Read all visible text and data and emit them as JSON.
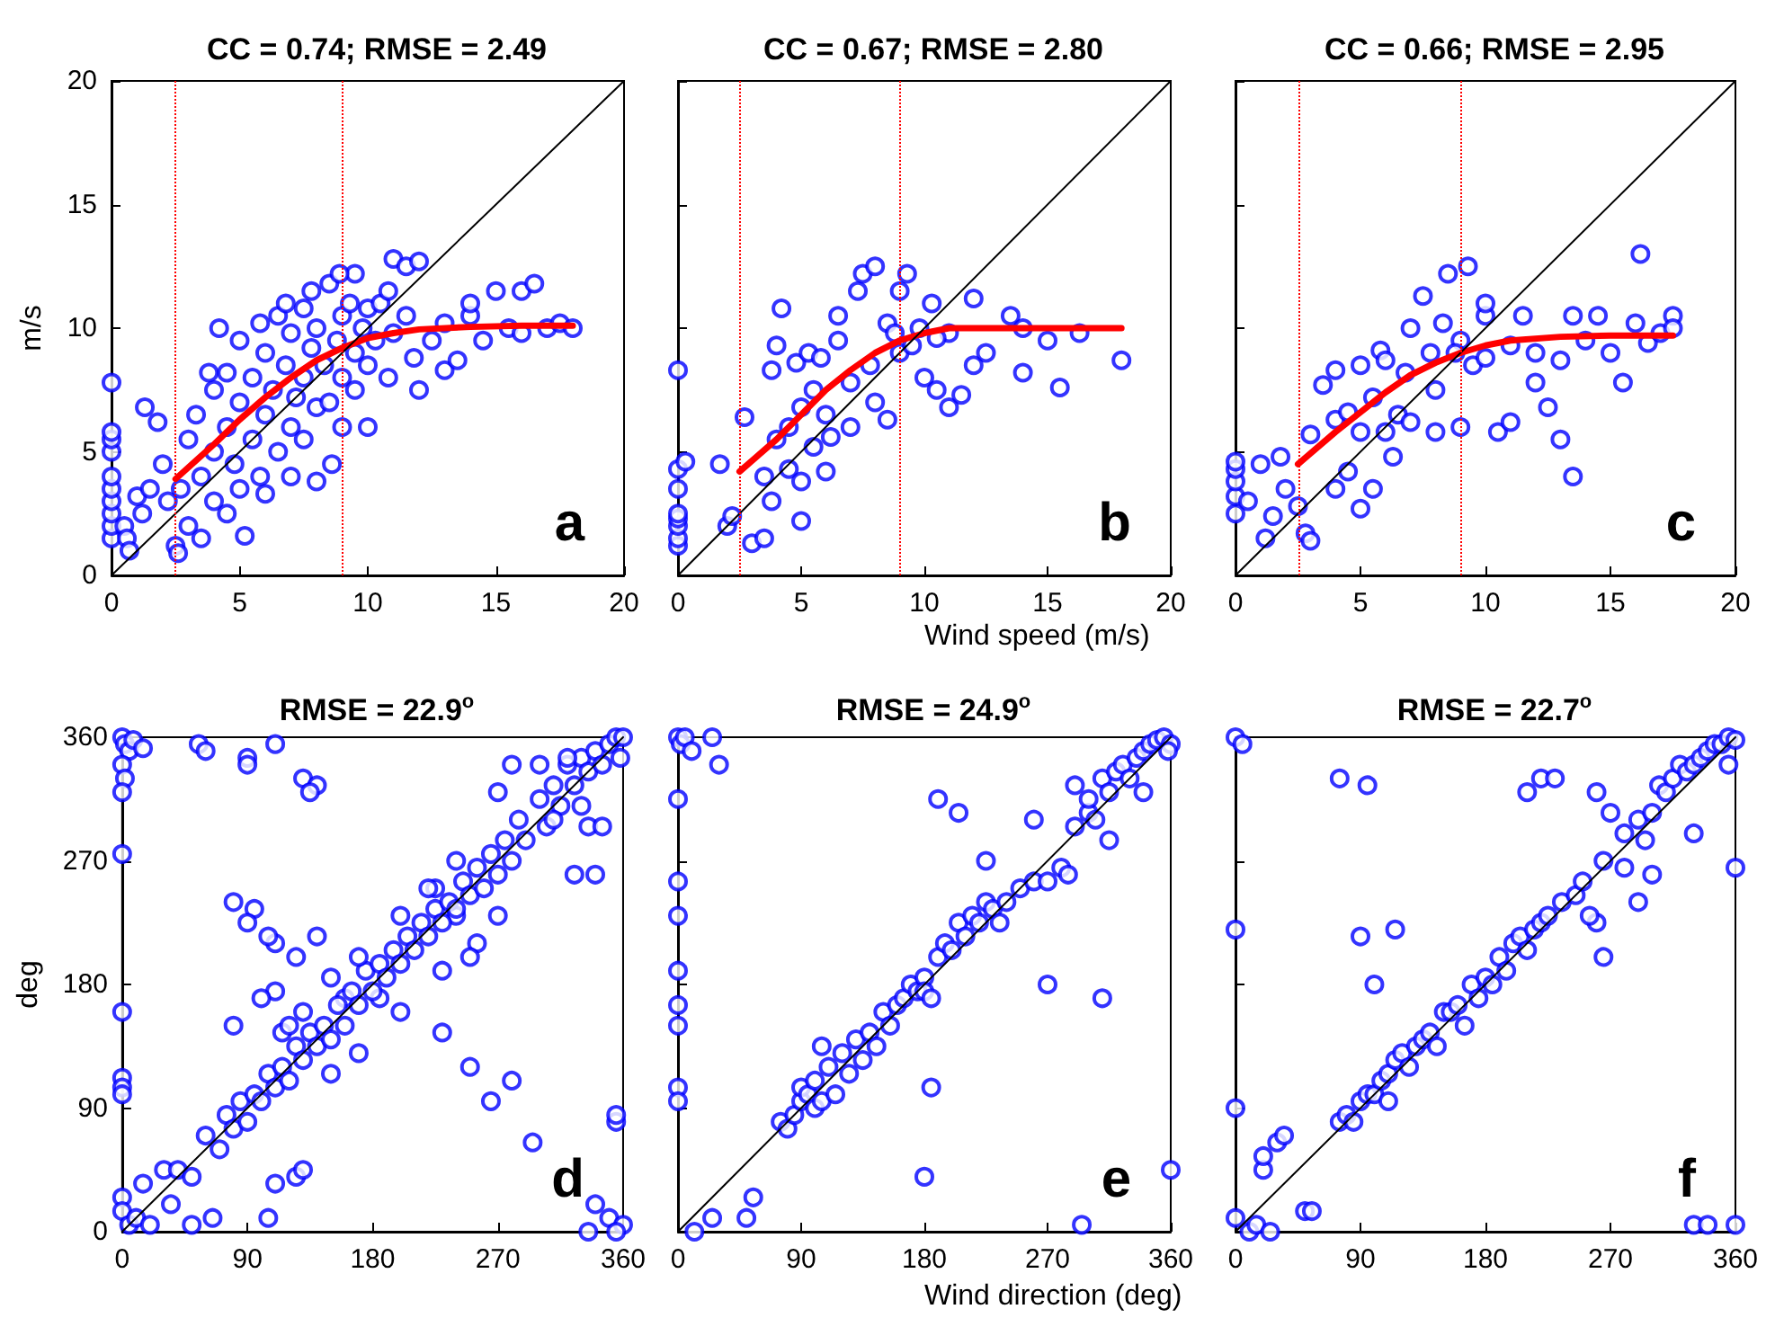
{
  "chart_data": [
    {
      "type": "scatter",
      "title": "CC = 0.74; RMSE = 2.49",
      "ylabel": "m/s",
      "xlim": [
        0,
        20
      ],
      "ylim": [
        0,
        20
      ],
      "xticks": [
        0,
        5,
        10,
        15,
        20
      ],
      "yticks": [
        0,
        5,
        10,
        15,
        20
      ],
      "marker": "circle",
      "annotations": [
        "a"
      ],
      "ref_lines": [
        {
          "axis": "x",
          "value": 2.5,
          "color": "#ff0000",
          "line_style": "dotted"
        },
        {
          "axis": "x",
          "value": 9,
          "color": "#ff0000",
          "line_style": "dotted"
        }
      ],
      "series": [
        {
          "color": "#0000ff",
          "x": [
            0,
            0,
            0,
            0,
            0,
            0,
            0,
            0,
            0,
            0,
            0.5,
            0.6,
            0.7,
            1,
            1.2,
            1.5,
            1.3,
            1.8,
            2,
            2.2,
            2.5,
            2.6,
            2.7,
            3,
            3,
            3.3,
            3.5,
            3.5,
            3.8,
            4,
            4,
            4,
            4.2,
            4.5,
            4.5,
            4.5,
            4.8,
            5,
            5,
            5,
            5.2,
            5.5,
            5.5,
            5.8,
            5.8,
            6,
            6,
            6,
            6.3,
            6.5,
            6.5,
            6.8,
            6.8,
            7,
            7,
            7,
            7.2,
            7.5,
            7.5,
            7.5,
            7.8,
            7.8,
            8,
            8,
            8,
            8.3,
            8.5,
            8.5,
            8.6,
            8.8,
            9,
            9,
            9,
            9.3,
            9.5,
            9.5,
            9.8,
            10,
            10,
            10,
            10.3,
            10.5,
            10.8,
            11,
            11,
            11.5,
            11.5,
            11.8,
            12,
            12,
            12.5,
            13,
            13,
            14,
            14.5,
            15,
            15.5,
            16,
            16.5,
            16,
            17,
            17.5,
            18,
            13.5,
            14,
            10.8,
            9.5,
            8.9
          ],
          "values": [
            1.5,
            2,
            2.5,
            3,
            3.5,
            4,
            5,
            5.5,
            5.8,
            7.8,
            2,
            1.5,
            1,
            3.2,
            2.5,
            3.5,
            6.8,
            6.2,
            4.5,
            3,
            1.2,
            0.9,
            3.5,
            5.5,
            2,
            6.5,
            1.5,
            4,
            8.2,
            3,
            5,
            7.5,
            10,
            2.5,
            6,
            8.2,
            4.5,
            9.5,
            3.5,
            7,
            1.6,
            5.5,
            8,
            10.2,
            4,
            6.5,
            9,
            3.3,
            7.5,
            10.5,
            5,
            8.5,
            11,
            6,
            9.8,
            4,
            7.2,
            10.8,
            8,
            5.5,
            9.2,
            11.5,
            6.8,
            3.8,
            10,
            8.5,
            11.8,
            7,
            4.5,
            9.5,
            10.5,
            8,
            6,
            11,
            9,
            7.5,
            10,
            8.5,
            10.8,
            6,
            9.5,
            11,
            8,
            9.8,
            12.8,
            10.5,
            12.5,
            8.8,
            12.7,
            7.5,
            9.5,
            10.2,
            8.3,
            10.5,
            9.5,
            11.5,
            10,
            11.5,
            11.8,
            9.8,
            10,
            10.2,
            10,
            8.7,
            11,
            11.5,
            12.2,
            12.2
          ]
        },
        {
          "type": "line",
          "marker": "none",
          "color": "#ff0000",
          "x": [
            2.5,
            4,
            5,
            6,
            7,
            8,
            9,
            10,
            11,
            12,
            14,
            16,
            18
          ],
          "values": [
            3.9,
            5.3,
            6.3,
            7.2,
            8,
            8.7,
            9.2,
            9.6,
            9.8,
            9.95,
            10.05,
            10.1,
            10.1
          ]
        },
        {
          "type": "line",
          "marker": "none",
          "color": "#000000",
          "x": [
            0,
            20
          ],
          "values": [
            0,
            20
          ]
        }
      ]
    },
    {
      "type": "scatter",
      "title": "CC = 0.67; RMSE = 2.80",
      "xlabel": "Wind speed (m/s)",
      "xlim": [
        0,
        20
      ],
      "ylim": [
        0,
        20
      ],
      "xticks": [
        0,
        5,
        10,
        15,
        20
      ],
      "yticks": [
        0,
        5,
        10,
        15,
        20
      ],
      "tick_labels": "x",
      "marker": "circle",
      "annotations": [
        "b"
      ],
      "ref_lines": [
        {
          "axis": "x",
          "value": 2.5,
          "color": "#ff0000",
          "line_style": "dotted"
        },
        {
          "axis": "x",
          "value": 9,
          "color": "#ff0000",
          "line_style": "dotted"
        }
      ],
      "series": [
        {
          "color": "#0000ff",
          "x": [
            0,
            0,
            0,
            0,
            0,
            0,
            0,
            0,
            0.3,
            1.7,
            2,
            2.2,
            2.7,
            3,
            3.5,
            3.5,
            3.8,
            3.8,
            4,
            4,
            4.2,
            4.5,
            4.5,
            4.8,
            5,
            5,
            5,
            5.3,
            5.5,
            5.5,
            5.8,
            6,
            6,
            6.5,
            6.5,
            7,
            7,
            7.3,
            7.5,
            7.8,
            8,
            8,
            8.5,
            8.5,
            9,
            9,
            9.3,
            9.5,
            9.8,
            10,
            10.3,
            10.5,
            11,
            11,
            11.5,
            12,
            12,
            12.5,
            13.5,
            14,
            14,
            15,
            15.5,
            16.3,
            18,
            10.5,
            8.8,
            6.2
          ],
          "values": [
            1.2,
            1.5,
            2,
            2.3,
            2.5,
            3.5,
            4.3,
            8.3,
            4.6,
            4.5,
            2,
            2.4,
            6.4,
            1.3,
            4,
            1.5,
            3,
            8.3,
            5.5,
            9.3,
            10.8,
            6,
            4.3,
            8.6,
            3.8,
            6.8,
            2.2,
            9,
            5.2,
            7.5,
            8.8,
            4.2,
            6.5,
            10.5,
            9.5,
            7.8,
            6,
            11.5,
            12.2,
            8.5,
            7,
            12.5,
            10.2,
            6.3,
            11.5,
            9,
            12.2,
            9.3,
            10,
            8,
            11,
            7.5,
            9.8,
            6.8,
            7.3,
            8.5,
            11.2,
            9,
            10.5,
            8.2,
            10,
            9.5,
            7.6,
            9.8,
            8.7,
            9.6,
            9.8,
            5.6
          ]
        },
        {
          "type": "line",
          "marker": "none",
          "color": "#ff0000",
          "x": [
            2.5,
            4,
            5,
            6,
            7,
            8,
            9,
            10,
            11,
            13,
            15,
            18
          ],
          "values": [
            4.2,
            5.5,
            6.5,
            7.5,
            8.3,
            9,
            9.5,
            9.8,
            10,
            10,
            10,
            10
          ]
        },
        {
          "type": "line",
          "marker": "none",
          "color": "#000000",
          "x": [
            0,
            20
          ],
          "values": [
            0,
            20
          ]
        }
      ]
    },
    {
      "type": "scatter",
      "title": "CC = 0.66; RMSE = 2.95",
      "xlim": [
        0,
        20
      ],
      "ylim": [
        0,
        20
      ],
      "xticks": [
        0,
        5,
        10,
        15,
        20
      ],
      "yticks": [
        0,
        5,
        10,
        15,
        20
      ],
      "tick_labels": "x",
      "marker": "circle",
      "annotations": [
        "c"
      ],
      "ref_lines": [
        {
          "axis": "x",
          "value": 2.5,
          "color": "#ff0000",
          "line_style": "dotted"
        },
        {
          "axis": "x",
          "value": 9,
          "color": "#ff0000",
          "line_style": "dotted"
        }
      ],
      "series": [
        {
          "color": "#0000ff",
          "x": [
            0,
            0,
            0,
            0,
            0,
            0.5,
            1,
            1.2,
            1.5,
            1.8,
            2,
            2.5,
            2.8,
            3,
            3,
            3.5,
            4,
            4,
            4,
            4.5,
            4.5,
            5,
            5,
            5,
            5.5,
            5.5,
            5.8,
            6,
            6,
            6.3,
            6.5,
            6.8,
            7,
            7,
            7.5,
            7.8,
            8,
            8,
            8.3,
            8.5,
            9,
            9,
            9.3,
            9.5,
            10,
            10,
            10.5,
            11,
            11,
            11.5,
            12,
            12,
            12.5,
            13,
            13,
            13.5,
            13.5,
            14,
            14.5,
            15,
            15.5,
            16,
            16.2,
            16.5,
            17,
            17.5,
            17.5,
            10,
            8.8
          ],
          "values": [
            2.5,
            3.2,
            3.8,
            4.3,
            4.6,
            3,
            4.5,
            1.5,
            2.4,
            4.8,
            3.5,
            2.8,
            1.7,
            1.4,
            5.7,
            7.7,
            6.3,
            3.5,
            8.3,
            6.6,
            4.2,
            5.8,
            8.5,
            2.7,
            3.5,
            7.2,
            9.1,
            5.8,
            8.7,
            4.8,
            6.5,
            8.2,
            6.2,
            10,
            11.3,
            9,
            5.8,
            7.5,
            10.2,
            12.2,
            6,
            9.5,
            12.5,
            8.5,
            10.5,
            8.8,
            5.8,
            6.2,
            9.3,
            10.5,
            7.8,
            9,
            6.8,
            8.7,
            5.5,
            10.5,
            4,
            9.5,
            10.5,
            9,
            7.8,
            10.2,
            13,
            9.4,
            9.8,
            10.5,
            10,
            11,
            9
          ]
        },
        {
          "type": "line",
          "marker": "none",
          "color": "#ff0000",
          "x": [
            2.5,
            4,
            5,
            6,
            7,
            8,
            9,
            10,
            11,
            13,
            15,
            17.5
          ],
          "values": [
            4.5,
            5.8,
            6.6,
            7.4,
            8.1,
            8.6,
            9,
            9.3,
            9.5,
            9.65,
            9.7,
            9.7
          ]
        },
        {
          "type": "line",
          "marker": "none",
          "color": "#000000",
          "x": [
            0,
            20
          ],
          "values": [
            0,
            20
          ]
        }
      ]
    },
    {
      "type": "scatter",
      "title": "RMSE = 22.9$^{o}$",
      "ylabel": "deg",
      "xlim": [
        0,
        360
      ],
      "ylim": [
        0,
        360
      ],
      "xticks": [
        0,
        90,
        180,
        270,
        360
      ],
      "yticks": [
        0,
        90,
        180,
        270,
        360
      ],
      "marker": "circle",
      "annotations": [
        "d"
      ],
      "series": [
        {
          "color": "#0000ff",
          "x": [
            0,
            2,
            5,
            8,
            15,
            0,
            2,
            0,
            0,
            0,
            0,
            0,
            0,
            0,
            0,
            5,
            10,
            20,
            15,
            35,
            30,
            50,
            55,
            60,
            90,
            90,
            110,
            130,
            140,
            135,
            80,
            95,
            90,
            110,
            105,
            125,
            140,
            110,
            80,
            160,
            185,
            225,
            240,
            230,
            250,
            280,
            265,
            295,
            335,
            325,
            345,
            340,
            255,
            355,
            355,
            340,
            350,
            335,
            360,
            355,
            100,
            115,
            105,
            110,
            65,
            125,
            130,
            40,
            50,
            60,
            70,
            75,
            80,
            85,
            90,
            95,
            100,
            105,
            110,
            115,
            120,
            125,
            130,
            135,
            140,
            145,
            150,
            155,
            160,
            165,
            170,
            175,
            180,
            185,
            190,
            195,
            200,
            205,
            210,
            215,
            220,
            225,
            230,
            235,
            240,
            245,
            250,
            255,
            260,
            265,
            270,
            275,
            280,
            285,
            290,
            300,
            305,
            310,
            315,
            320,
            325,
            330,
            335,
            340,
            345,
            350,
            355,
            360,
            358,
            300,
            320,
            280,
            270,
            310,
            330,
            120,
            130,
            150,
            170,
            200,
            220,
            240,
            150,
            170,
            200,
            230,
            250,
            270
          ],
          "values": [
            360,
            355,
            350,
            358,
            352,
            340,
            330,
            320,
            275,
            160,
            112,
            105,
            100,
            25,
            15,
            5,
            10,
            5,
            35,
            20,
            45,
            5,
            355,
            350,
            345,
            340,
            355,
            330,
            325,
            320,
            240,
            235,
            225,
            210,
            215,
            200,
            215,
            175,
            150,
            170,
            170,
            250,
            230,
            145,
            120,
            110,
            95,
            65,
            295,
            260,
            295,
            260,
            210,
            80,
            85,
            20,
            10,
            0,
            5,
            0,
            170,
            145,
            10,
            35,
            10,
            40,
            45,
            45,
            40,
            70,
            60,
            85,
            75,
            95,
            80,
            100,
            95,
            115,
            105,
            120,
            110,
            135,
            125,
            145,
            135,
            150,
            140,
            165,
            150,
            175,
            165,
            190,
            175,
            195,
            185,
            205,
            195,
            215,
            205,
            225,
            215,
            235,
            225,
            240,
            235,
            255,
            245,
            265,
            250,
            275,
            260,
            285,
            270,
            300,
            285,
            315,
            295,
            325,
            310,
            340,
            325,
            345,
            335,
            350,
            340,
            355,
            360,
            360,
            345,
            340,
            345,
            340,
            320,
            300,
            310,
            150,
            160,
            185,
            200,
            230,
            250,
            270,
            115,
            130,
            160,
            190,
            200,
            230
          ]
        },
        {
          "type": "line",
          "marker": "none",
          "color": "#000000",
          "x": [
            0,
            360
          ],
          "values": [
            0,
            360
          ]
        }
      ]
    },
    {
      "type": "scatter",
      "title": "RMSE = 24.9$^{o}$",
      "xlabel": "Wind direction (deg)",
      "xlim": [
        0,
        360
      ],
      "ylim": [
        0,
        360
      ],
      "xticks": [
        0,
        90,
        180,
        270,
        360
      ],
      "yticks": [
        0,
        90,
        180,
        270,
        360
      ],
      "tick_labels": "x",
      "marker": "circle",
      "annotations": [
        "e"
      ],
      "series": [
        {
          "color": "#0000ff",
          "x": [
            0,
            2,
            5,
            10,
            25,
            30,
            0,
            0,
            0,
            0,
            0,
            0,
            0,
            0,
            12,
            25,
            50,
            55,
            105,
            190,
            205,
            225,
            260,
            180,
            270,
            310,
            360,
            295,
            185,
            75,
            80,
            85,
            90,
            90,
            95,
            100,
            100,
            105,
            110,
            115,
            120,
            125,
            130,
            135,
            140,
            145,
            150,
            155,
            160,
            165,
            170,
            175,
            180,
            180,
            185,
            190,
            195,
            200,
            205,
            210,
            215,
            220,
            225,
            230,
            235,
            240,
            250,
            260,
            270,
            280,
            285,
            290,
            300,
            305,
            310,
            315,
            320,
            325,
            330,
            335,
            340,
            345,
            350,
            355,
            360,
            358,
            315,
            290,
            300,
            340
          ],
          "values": [
            360,
            355,
            360,
            350,
            360,
            340,
            315,
            255,
            230,
            190,
            165,
            150,
            105,
            95,
            0,
            10,
            10,
            25,
            135,
            315,
            305,
            270,
            300,
            40,
            180,
            170,
            45,
            5,
            105,
            80,
            75,
            85,
            95,
            105,
            100,
            90,
            110,
            95,
            120,
            100,
            130,
            115,
            140,
            125,
            145,
            135,
            160,
            150,
            165,
            170,
            180,
            175,
            185,
            175,
            170,
            200,
            210,
            205,
            225,
            215,
            230,
            225,
            240,
            235,
            225,
            240,
            250,
            255,
            255,
            265,
            260,
            295,
            305,
            300,
            330,
            320,
            335,
            340,
            330,
            345,
            350,
            355,
            358,
            360,
            355,
            350,
            285,
            325,
            315,
            320
          ]
        },
        {
          "type": "line",
          "marker": "none",
          "color": "#000000",
          "x": [
            0,
            360
          ],
          "values": [
            0,
            360
          ]
        }
      ]
    },
    {
      "type": "scatter",
      "title": "RMSE = 22.7$^{o}$",
      "xlim": [
        0,
        360
      ],
      "ylim": [
        0,
        360
      ],
      "xticks": [
        0,
        90,
        180,
        270,
        360
      ],
      "yticks": [
        0,
        90,
        180,
        270,
        360
      ],
      "tick_labels": "x",
      "marker": "circle",
      "annotations": [
        "f"
      ],
      "series": [
        {
          "color": "#0000ff",
          "x": [
            0,
            5,
            0,
            0,
            0,
            10,
            15,
            25,
            20,
            20,
            30,
            35,
            50,
            55,
            75,
            95,
            90,
            100,
            115,
            210,
            220,
            230,
            260,
            270,
            280,
            260,
            265,
            290,
            300,
            360,
            330,
            340,
            360,
            295,
            330,
            75,
            80,
            85,
            90,
            95,
            100,
            105,
            110,
            110,
            115,
            120,
            125,
            130,
            135,
            140,
            145,
            150,
            155,
            160,
            165,
            170,
            175,
            180,
            185,
            190,
            195,
            200,
            205,
            210,
            215,
            220,
            225,
            235,
            245,
            250,
            255,
            265,
            280,
            290,
            300,
            305,
            310,
            315,
            320,
            325,
            330,
            335,
            340,
            345,
            350,
            355,
            360,
            355
          ],
          "values": [
            360,
            355,
            90,
            220,
            10,
            0,
            5,
            0,
            45,
            55,
            65,
            70,
            15,
            15,
            330,
            325,
            215,
            180,
            220,
            320,
            330,
            330,
            320,
            305,
            290,
            225,
            200,
            240,
            260,
            265,
            5,
            5,
            5,
            285,
            290,
            80,
            85,
            80,
            95,
            100,
            100,
            110,
            95,
            115,
            125,
            130,
            120,
            135,
            140,
            145,
            135,
            160,
            160,
            165,
            150,
            180,
            170,
            185,
            180,
            200,
            190,
            210,
            215,
            205,
            220,
            225,
            230,
            240,
            245,
            255,
            230,
            270,
            265,
            300,
            305,
            325,
            320,
            330,
            340,
            335,
            340,
            345,
            350,
            355,
            355,
            360,
            358,
            340
          ]
        },
        {
          "type": "line",
          "marker": "none",
          "color": "#000000",
          "x": [
            0,
            360
          ],
          "values": [
            0,
            360
          ]
        }
      ]
    }
  ]
}
